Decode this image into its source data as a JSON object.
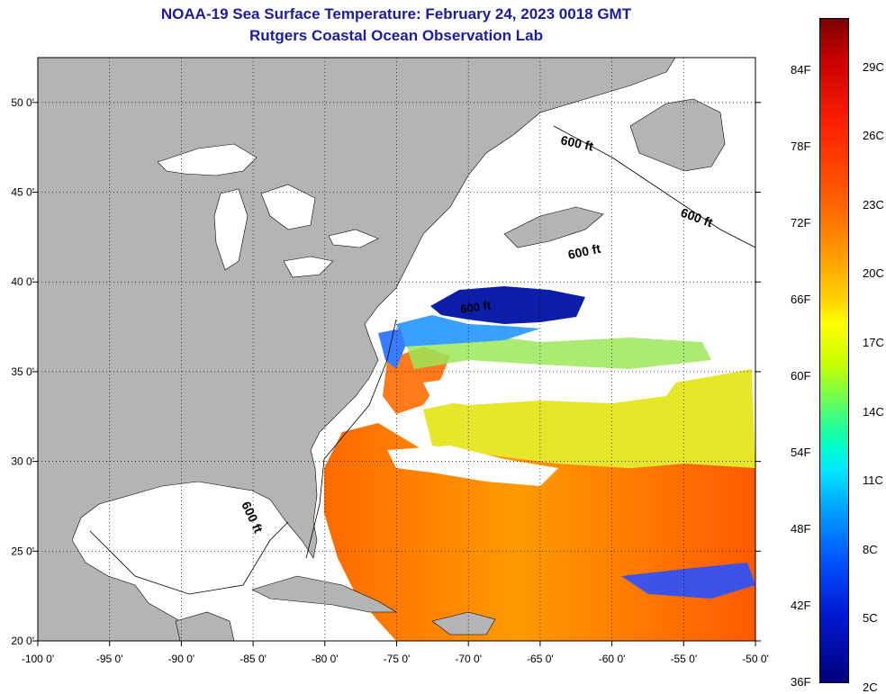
{
  "title": "NOAA-19 Sea Surface Temperature:  February 24, 2023 0018 GMT",
  "subtitle": "Rutgers Coastal Ocean Observation Lab",
  "lat_labels": [
    "50 0'",
    "45 0'",
    "40 0'",
    "35 0'",
    "30 0'",
    "25 0'",
    "20 0'"
  ],
  "lon_labels": [
    "-100 0'",
    "-95 0'",
    "-90 0'",
    "-85 0'",
    "-80 0'",
    "-75 0'",
    "-70 0'",
    "-65 0'",
    "-60 0'",
    "-55 0'",
    "-50 0'"
  ],
  "lat_range": [
    20,
    52.5
  ],
  "lon_range": [
    -100,
    -50
  ],
  "isobath_label": "600 ft",
  "colorbar": {
    "fahrenheit": [
      "84F",
      "78F",
      "72F",
      "66F",
      "60F",
      "54F",
      "48F",
      "42F",
      "36F"
    ],
    "celsius": [
      "29C",
      "26C",
      "23C",
      "20C",
      "17C",
      "14C",
      "11C",
      "8C",
      "5C",
      "2C"
    ],
    "range_f": [
      36,
      88
    ]
  },
  "colors": {
    "title": "#1c1ca0",
    "land": "#b4b4b4",
    "cloud": "#ffffff",
    "warm": "#ff7800",
    "cold": "#0028c8"
  }
}
